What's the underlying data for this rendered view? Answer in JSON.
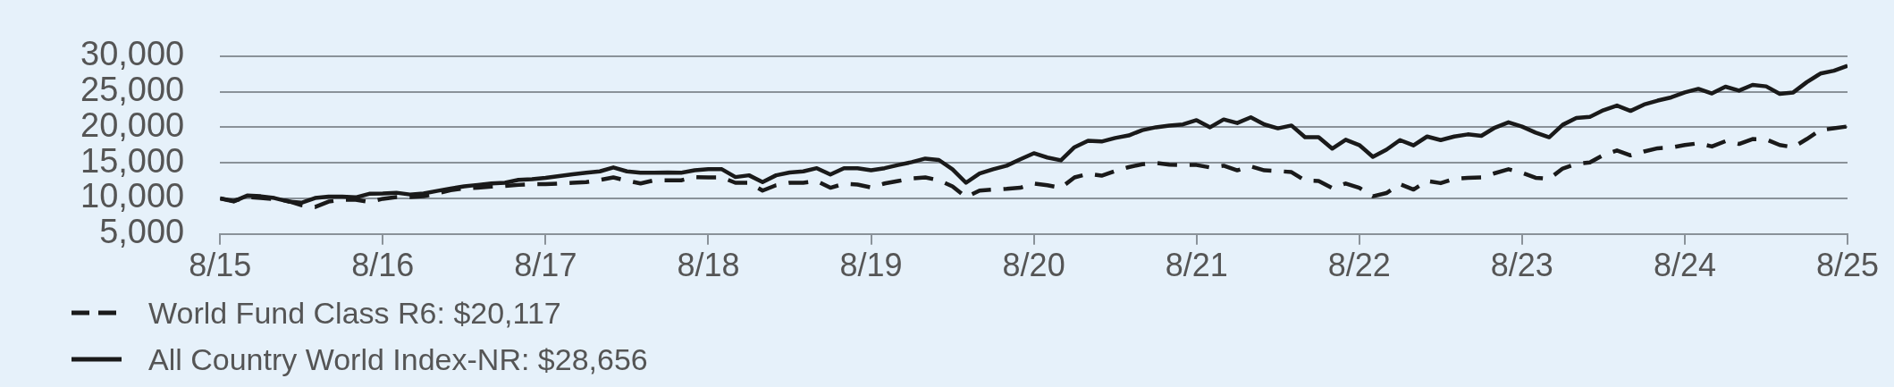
{
  "chart_data": {
    "type": "line",
    "x": [
      "2015-08",
      "2015-09",
      "2015-10",
      "2015-11",
      "2015-12",
      "2016-01",
      "2016-02",
      "2016-03",
      "2016-04",
      "2016-05",
      "2016-06",
      "2016-07",
      "2016-08",
      "2016-09",
      "2016-10",
      "2016-11",
      "2016-12",
      "2017-01",
      "2017-02",
      "2017-03",
      "2017-04",
      "2017-05",
      "2017-06",
      "2017-07",
      "2017-08",
      "2017-09",
      "2017-10",
      "2017-11",
      "2017-12",
      "2018-01",
      "2018-02",
      "2018-03",
      "2018-04",
      "2018-05",
      "2018-06",
      "2018-07",
      "2018-08",
      "2018-09",
      "2018-10",
      "2018-11",
      "2018-12",
      "2019-01",
      "2019-02",
      "2019-03",
      "2019-04",
      "2019-05",
      "2019-06",
      "2019-07",
      "2019-08",
      "2019-09",
      "2019-10",
      "2019-11",
      "2019-12",
      "2020-01",
      "2020-02",
      "2020-03",
      "2020-04",
      "2020-05",
      "2020-06",
      "2020-07",
      "2020-08",
      "2020-09",
      "2020-10",
      "2020-11",
      "2020-12",
      "2021-01",
      "2021-02",
      "2021-03",
      "2021-04",
      "2021-05",
      "2021-06",
      "2021-07",
      "2021-08",
      "2021-09",
      "2021-10",
      "2021-11",
      "2021-12",
      "2022-01",
      "2022-02",
      "2022-03",
      "2022-04",
      "2022-05",
      "2022-06",
      "2022-07",
      "2022-08",
      "2022-09",
      "2022-10",
      "2022-11",
      "2022-12",
      "2023-01",
      "2023-02",
      "2023-03",
      "2023-04",
      "2023-05",
      "2023-06",
      "2023-07",
      "2023-08",
      "2023-09",
      "2023-10",
      "2023-11",
      "2023-12",
      "2024-01",
      "2024-02",
      "2024-03",
      "2024-04",
      "2024-05",
      "2024-06",
      "2024-07",
      "2024-08",
      "2024-09",
      "2024-10",
      "2024-11",
      "2024-12",
      "2025-01",
      "2025-02",
      "2025-03",
      "2025-04",
      "2025-05",
      "2025-06",
      "2025-07",
      "2025-08"
    ],
    "series": [
      {
        "name": "World Fund Class R6: $20,117",
        "color": "#1a1a1a",
        "line_style": "dashed",
        "values": [
          10000,
          9650,
          10200,
          10050,
          9900,
          9650,
          9050,
          8800,
          9550,
          9800,
          9800,
          9500,
          9950,
          10200,
          10200,
          10300,
          10700,
          11150,
          11400,
          11500,
          11650,
          11750,
          11900,
          12000,
          12000,
          12100,
          12200,
          12300,
          12600,
          12950,
          12500,
          12100,
          12550,
          12550,
          12550,
          13000,
          12950,
          12950,
          12200,
          12200,
          11100,
          11850,
          12200,
          12200,
          12450,
          11500,
          12050,
          11950,
          11550,
          12100,
          12450,
          12800,
          12950,
          12550,
          11700,
          10200,
          11100,
          11250,
          11350,
          11500,
          12100,
          11850,
          11500,
          12950,
          13450,
          13200,
          13850,
          14400,
          14800,
          15000,
          14750,
          14700,
          14700,
          14350,
          14600,
          13950,
          14500,
          13950,
          13850,
          13700,
          12500,
          12450,
          11450,
          12100,
          11500,
          10300,
          10750,
          12000,
          11250,
          12450,
          12150,
          12750,
          12900,
          12950,
          13550,
          14100,
          13600,
          12900,
          12750,
          14200,
          14850,
          15050,
          16100,
          16750,
          16050,
          16600,
          17050,
          17150,
          17500,
          17750,
          17300,
          18050,
          17650,
          18350,
          18300,
          17500,
          17200,
          18350,
          19600,
          19850,
          20117
        ]
      },
      {
        "name": "All Country World Index-NR: $28,656",
        "color": "#1a1a1a",
        "line_style": "solid",
        "values": [
          10000,
          9570,
          10400,
          10300,
          10050,
          9570,
          9400,
          10050,
          10250,
          10250,
          10150,
          10650,
          10700,
          10800,
          10550,
          10700,
          11050,
          11400,
          11700,
          11900,
          12100,
          12200,
          12600,
          12700,
          12900,
          13150,
          13400,
          13600,
          13800,
          14350,
          13800,
          13600,
          13600,
          13650,
          13600,
          13950,
          14100,
          14100,
          13000,
          13250,
          12300,
          13250,
          13650,
          13800,
          14250,
          13350,
          14250,
          14250,
          13950,
          14250,
          14700,
          15100,
          15600,
          15400,
          14100,
          12200,
          13500,
          14100,
          14600,
          15500,
          16350,
          15750,
          15350,
          17200,
          18100,
          18000,
          18500,
          18850,
          19600,
          20000,
          20250,
          20400,
          21000,
          20000,
          21100,
          20600,
          21400,
          20400,
          19850,
          20250,
          18600,
          18600,
          17000,
          18250,
          17500,
          15850,
          16850,
          18200,
          17450,
          18700,
          18200,
          18700,
          19000,
          18800,
          19950,
          20700,
          20100,
          19250,
          18600,
          20350,
          21300,
          21450,
          22400,
          23050,
          22300,
          23200,
          23750,
          24200,
          24900,
          25400,
          24750,
          25700,
          25150,
          25950,
          25750,
          24700,
          24900,
          26350,
          27550,
          27950,
          28656
        ]
      }
    ],
    "xlim": [
      "2015-08",
      "2025-08"
    ],
    "xticks": [
      {
        "value": "2015-08",
        "label": "8/15"
      },
      {
        "value": "2016-08",
        "label": "8/16"
      },
      {
        "value": "2017-08",
        "label": "8/17"
      },
      {
        "value": "2018-08",
        "label": "8/18"
      },
      {
        "value": "2019-08",
        "label": "8/19"
      },
      {
        "value": "2020-08",
        "label": "8/20"
      },
      {
        "value": "2021-08",
        "label": "8/21"
      },
      {
        "value": "2022-08",
        "label": "8/22"
      },
      {
        "value": "2023-08",
        "label": "8/23"
      },
      {
        "value": "2024-08",
        "label": "8/24"
      },
      {
        "value": "2025-08",
        "label": "8/25"
      }
    ],
    "ylim": [
      5000,
      30000
    ],
    "yticks": [
      {
        "value": 5000,
        "label": "5,000"
      },
      {
        "value": 10000,
        "label": "10,000"
      },
      {
        "value": 15000,
        "label": "15,000"
      },
      {
        "value": 20000,
        "label": "20,000"
      },
      {
        "value": 25000,
        "label": "25,000"
      },
      {
        "value": 30000,
        "label": "30,000"
      }
    ],
    "grid": "y",
    "legend": "bottom left",
    "marker": "none"
  }
}
